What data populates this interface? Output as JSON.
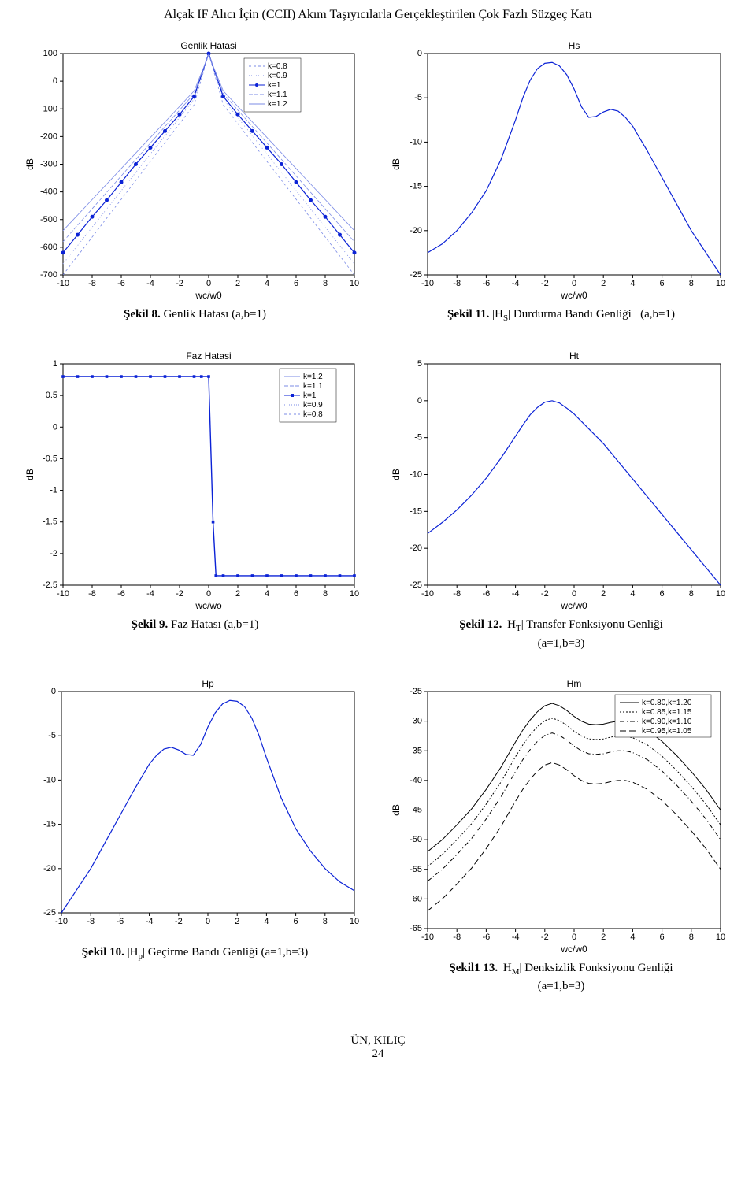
{
  "page_title": "Alçak IF Alıcı İçin (CCII) Akım Taşıyıcılarla  Gerçekleştirilen Çok Fazlı Süzgeç Katı",
  "footer_author": "ÜN, KILIÇ",
  "footer_page": "24",
  "colors": {
    "axis": "#000000",
    "grid": "#bfbfbf",
    "series_blue": "#0b22d6",
    "series_blue_light": "#7b8be6",
    "background": "#ffffff",
    "text": "#000000"
  },
  "fig8": {
    "type": "line+scatter",
    "title": "Genlik Hatasi",
    "caption_bold": "Şekil 8.",
    "caption_rest": " Genlik Hatası   (a,b=1)",
    "xlabel": "wc/w0",
    "ylabel": "dB",
    "xlim": [
      -10,
      10
    ],
    "ylim": [
      -700,
      100
    ],
    "xticks": [
      -10,
      -8,
      -6,
      -4,
      -2,
      0,
      2,
      4,
      6,
      8,
      10
    ],
    "yticks": [
      -700,
      -600,
      -500,
      -400,
      -300,
      -200,
      -100,
      0,
      100
    ],
    "legend_entries": [
      "k=0.8",
      "k=0.9",
      "k=1",
      "k=1.1",
      "k=1.2"
    ],
    "series": {
      "k08": {
        "color": "#7b8be6",
        "width": 0.8,
        "dash": "3 3",
        "x": [
          -10,
          -1,
          0,
          1,
          10
        ],
        "y": [
          -700,
          -85,
          100,
          -85,
          -700
        ]
      },
      "k09": {
        "color": "#7b8be6",
        "width": 0.8,
        "dash": "1 2",
        "x": [
          -10,
          -1,
          0,
          1,
          10
        ],
        "y": [
          -660,
          -65,
          100,
          -65,
          -660
        ]
      },
      "k1": {
        "color": "#0b22d6",
        "width": 1.2,
        "marker": "circle",
        "x": [
          -10,
          -9,
          -8,
          -7,
          -6,
          -5,
          -4,
          -3,
          -2,
          -1,
          0,
          1,
          2,
          3,
          4,
          5,
          6,
          7,
          8,
          9,
          10
        ],
        "y": [
          -620,
          -555,
          -490,
          -430,
          -365,
          -300,
          -240,
          -180,
          -120,
          -55,
          100,
          -55,
          -120,
          -180,
          -240,
          -300,
          -365,
          -430,
          -490,
          -555,
          -620
        ]
      },
      "k11": {
        "color": "#7b8be6",
        "width": 0.8,
        "dash": "5 2",
        "x": [
          -10,
          -1,
          0,
          1,
          10
        ],
        "y": [
          -580,
          -45,
          98,
          -45,
          -580
        ]
      },
      "k12": {
        "color": "#7b8be6",
        "width": 0.8,
        "dash": "none",
        "x": [
          -10,
          -1,
          0,
          1,
          10
        ],
        "y": [
          -540,
          -35,
          95,
          -35,
          -540
        ]
      }
    }
  },
  "fig9": {
    "type": "step",
    "title": "Faz Hatasi",
    "caption_bold": "Şekil 9.",
    "caption_rest": " Faz Hatası   (a,b=1)",
    "xlabel": "wc/wo",
    "ylabel": "dB",
    "xlim": [
      -10,
      10
    ],
    "ylim": [
      -2.5,
      1
    ],
    "xticks": [
      -10,
      -8,
      -6,
      -4,
      -2,
      0,
      2,
      4,
      6,
      8,
      10
    ],
    "yticks": [
      -2.5,
      -2,
      -1.5,
      -1,
      -0.5,
      0,
      0.5,
      1
    ],
    "legend_entries": [
      "k=1.2",
      "k=1.1",
      "k=1",
      "k=0.9",
      "k=0.8"
    ],
    "series": {
      "main": {
        "color": "#0b22d6",
        "width": 1.4,
        "marker": "square",
        "x": [
          -10,
          -9,
          -8,
          -7,
          -6,
          -5,
          -4,
          -3,
          -2,
          -1,
          -0.5,
          0,
          0.3,
          0.5,
          1,
          2,
          3,
          4,
          5,
          6,
          7,
          8,
          9,
          10
        ],
        "y": [
          0.8,
          0.8,
          0.8,
          0.8,
          0.8,
          0.8,
          0.8,
          0.8,
          0.8,
          0.8,
          0.8,
          0.8,
          -1.5,
          -2.35,
          -2.35,
          -2.35,
          -2.35,
          -2.35,
          -2.35,
          -2.35,
          -2.35,
          -2.35,
          -2.35,
          -2.35
        ]
      }
    }
  },
  "fig10": {
    "type": "line",
    "title": "Hp",
    "caption_bold": "Şekil 10.",
    "caption_rest": " |Hp| Geçirme Bandı Genliği (a=1,b=3)",
    "xlim": [
      -10,
      10
    ],
    "ylim": [
      -25,
      0
    ],
    "xticks": [
      -10,
      -8,
      -6,
      -4,
      -2,
      0,
      2,
      4,
      6,
      8,
      10
    ],
    "yticks": [
      -25,
      -20,
      -15,
      -10,
      -5,
      0
    ],
    "series": {
      "main": {
        "color": "#0b22d6",
        "width": 1.2,
        "x": [
          -10,
          -9,
          -8,
          -7,
          -6,
          -5,
          -4,
          -3.5,
          -3,
          -2.5,
          -2,
          -1.5,
          -1,
          -0.5,
          0,
          0.5,
          1,
          1.5,
          2,
          2.5,
          3,
          3.5,
          4,
          5,
          6,
          7,
          8,
          9,
          10
        ],
        "y": [
          -25,
          -22.5,
          -20,
          -17,
          -14,
          -11,
          -8.2,
          -7.2,
          -6.5,
          -6.3,
          -6.6,
          -7.1,
          -7.2,
          -6.0,
          -4.0,
          -2.4,
          -1.4,
          -1.0,
          -1.1,
          -1.7,
          -3.0,
          -5.0,
          -7.5,
          -12.0,
          -15.5,
          -18.0,
          -20.0,
          -21.5,
          -22.5
        ]
      }
    }
  },
  "fig11": {
    "type": "line",
    "title": "Hs",
    "caption_bold": "Şekil 11.",
    "caption_rest": " |HS| Durdurma Bandı Genliği   (a,b=1)",
    "xlabel": "wc/w0",
    "ylabel": "dB",
    "xlim": [
      -10,
      10
    ],
    "ylim": [
      -25,
      0
    ],
    "xticks": [
      -10,
      -8,
      -6,
      -4,
      -2,
      0,
      2,
      4,
      6,
      8,
      10
    ],
    "yticks": [
      -25,
      -20,
      -15,
      -10,
      -5,
      0
    ],
    "series": {
      "main": {
        "color": "#0b22d6",
        "width": 1.2,
        "x": [
          -10,
          -9,
          -8,
          -7,
          -6,
          -5,
          -4,
          -3.5,
          -3,
          -2.5,
          -2,
          -1.5,
          -1,
          -0.5,
          0,
          0.5,
          1,
          1.5,
          2,
          2.5,
          3,
          3.5,
          4,
          5,
          6,
          7,
          8,
          9,
          10
        ],
        "y": [
          -22.5,
          -21.5,
          -20,
          -18,
          -15.5,
          -12,
          -7.5,
          -5.0,
          -3.0,
          -1.7,
          -1.1,
          -1.0,
          -1.4,
          -2.4,
          -4.0,
          -6.0,
          -7.2,
          -7.1,
          -6.6,
          -6.3,
          -6.5,
          -7.2,
          -8.2,
          -11,
          -14,
          -17,
          -20,
          -22.5,
          -25
        ]
      }
    }
  },
  "fig12": {
    "type": "line",
    "title": "Ht",
    "caption_bold": "Şekil 12.",
    "caption_rest": " |HT| Transfer Fonksiyonu Genliği (a=1,b=3)",
    "xlabel": "wc/w0",
    "ylabel": "dB",
    "xlim": [
      -10,
      10
    ],
    "ylim": [
      -25,
      5
    ],
    "xticks": [
      -10,
      -8,
      -6,
      -4,
      -2,
      0,
      2,
      4,
      6,
      8,
      10
    ],
    "yticks": [
      -25,
      -20,
      -15,
      -10,
      -5,
      0,
      5
    ],
    "series": {
      "main": {
        "color": "#0b22d6",
        "width": 1.2,
        "x": [
          -10,
          -9,
          -8,
          -7,
          -6,
          -5,
          -4,
          -3.5,
          -3,
          -2.5,
          -2,
          -1.5,
          -1,
          -0.5,
          0,
          0.5,
          1,
          1.5,
          2,
          2.5,
          3,
          4,
          5,
          6,
          7,
          8,
          9,
          10
        ],
        "y": [
          -18,
          -16.5,
          -14.8,
          -12.8,
          -10.5,
          -7.8,
          -4.8,
          -3.3,
          -1.9,
          -0.9,
          -0.2,
          0.0,
          -0.3,
          -1.0,
          -1.8,
          -2.8,
          -3.8,
          -4.8,
          -5.8,
          -7.0,
          -8.2,
          -10.6,
          -13.0,
          -15.4,
          -17.8,
          -20.2,
          -22.6,
          -25.0
        ]
      }
    }
  },
  "fig13": {
    "type": "multi-line",
    "title": "Hm",
    "caption_bold": "Şekil1 13.",
    "caption_rest": " |HM| Denksizlik Fonksiyonu Genliği (a=1,b=3)",
    "xlabel": "wc/w0",
    "ylabel": "dB",
    "xlim": [
      -10,
      10
    ],
    "ylim": [
      -65,
      -25
    ],
    "xticks": [
      -10,
      -8,
      -6,
      -4,
      -2,
      0,
      2,
      4,
      6,
      8,
      10
    ],
    "yticks": [
      -65,
      -60,
      -55,
      -50,
      -45,
      -40,
      -35,
      -30,
      -25
    ],
    "legend_entries": [
      "k=0.80,k=1.20",
      "k=0.85,k=1.15",
      "k=0.90,k=1.10",
      "k=0.95,k=1.05"
    ],
    "series_common_x": [
      -10,
      -9,
      -8,
      -7,
      -6,
      -5,
      -4,
      -3.5,
      -3,
      -2.5,
      -2,
      -1.5,
      -1,
      -0.5,
      0,
      0.5,
      1,
      1.5,
      2,
      2.5,
      3,
      3.5,
      4,
      5,
      6,
      7,
      8,
      9,
      10
    ],
    "series": {
      "s1": {
        "color": "#000000",
        "width": 1.0,
        "dash": "none",
        "offset": 0
      },
      "s2": {
        "color": "#000000",
        "width": 1.0,
        "dash": "2 2",
        "offset": -2.5
      },
      "s3": {
        "color": "#000000",
        "width": 1.0,
        "dash": "6 3 1 3",
        "offset": -5
      },
      "s4": {
        "color": "#000000",
        "width": 1.0,
        "dash": "8 4",
        "offset": -10
      }
    },
    "base_y": [
      -52,
      -50,
      -47.5,
      -44.8,
      -41.5,
      -37.8,
      -33.5,
      -31.5,
      -29.8,
      -28.4,
      -27.4,
      -27.0,
      -27.4,
      -28.2,
      -29.2,
      -30.0,
      -30.5,
      -30.6,
      -30.5,
      -30.2,
      -30.0,
      -30.0,
      -30.3,
      -31.5,
      -33.4,
      -35.8,
      -38.5,
      -41.5,
      -45.0
    ]
  }
}
